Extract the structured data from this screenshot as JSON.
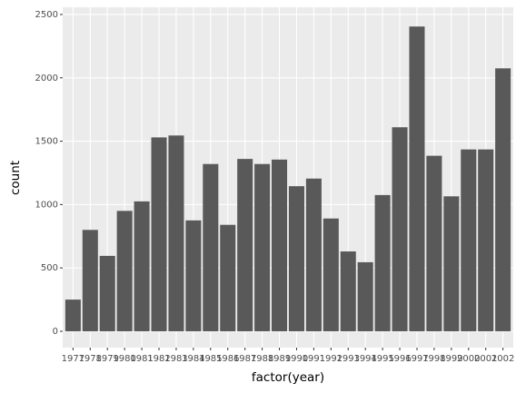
{
  "chart_data": {
    "type": "bar",
    "x_label": "factor(year)",
    "y_label": "count",
    "categories": [
      "1977",
      "1978",
      "1979",
      "1980",
      "1981",
      "1982",
      "1983",
      "1984",
      "1985",
      "1986",
      "1987",
      "1988",
      "1989",
      "1990",
      "1991",
      "1992",
      "1993",
      "1994",
      "1995",
      "1996",
      "1997",
      "1998",
      "1999",
      "2000",
      "2001",
      "2002"
    ],
    "values": [
      250,
      800,
      595,
      950,
      1025,
      1530,
      1545,
      875,
      1320,
      840,
      1360,
      1320,
      1355,
      1145,
      1205,
      890,
      630,
      545,
      1075,
      1610,
      2405,
      1385,
      1065,
      1435,
      1435,
      2075
    ],
    "color": "#595959",
    "ylim": [
      -129,
      2557
    ],
    "yticks": [
      0,
      500,
      1000,
      1500,
      2000,
      2500
    ],
    "grid": true
  }
}
